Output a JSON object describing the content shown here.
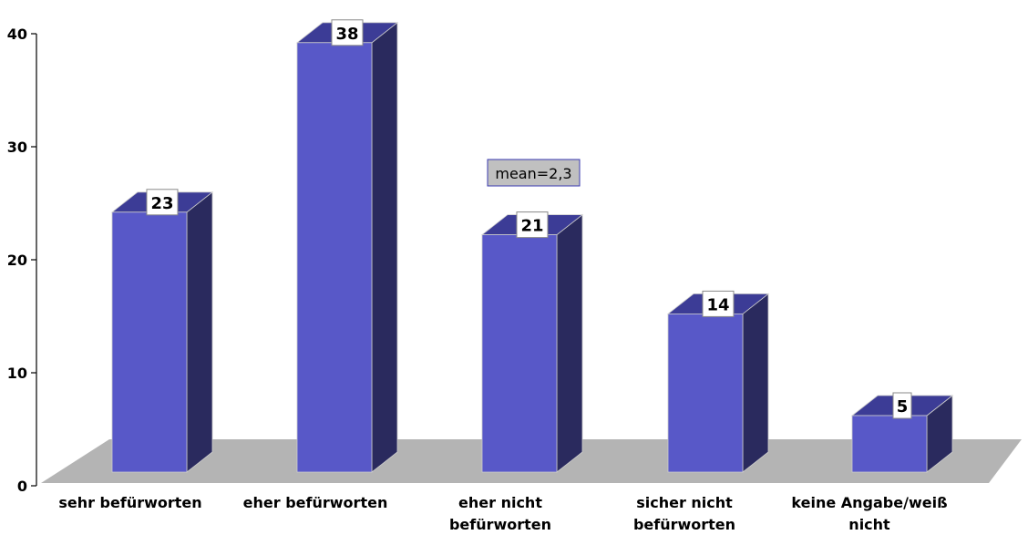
{
  "chart_data": {
    "type": "bar",
    "categories": [
      [
        "sehr befürworten"
      ],
      [
        "eher befürworten"
      ],
      [
        "eher nicht",
        "befürworten"
      ],
      [
        "sicher nicht",
        "befürworten"
      ],
      [
        "keine Angabe/weiß",
        "nicht"
      ]
    ],
    "values": [
      23,
      38,
      21,
      14,
      5
    ],
    "ylim": [
      0,
      40
    ],
    "yticks": [
      0,
      10,
      20,
      30,
      40
    ],
    "annotation": "mean=2,3",
    "grid": false,
    "three_d": true,
    "colors": {
      "bar_front": "#5858c8",
      "bar_side": "#2a2a5e",
      "bar_top": "#3c3c96",
      "floor": "#b4b4b4",
      "mean_box": "#c0c0c0"
    }
  }
}
